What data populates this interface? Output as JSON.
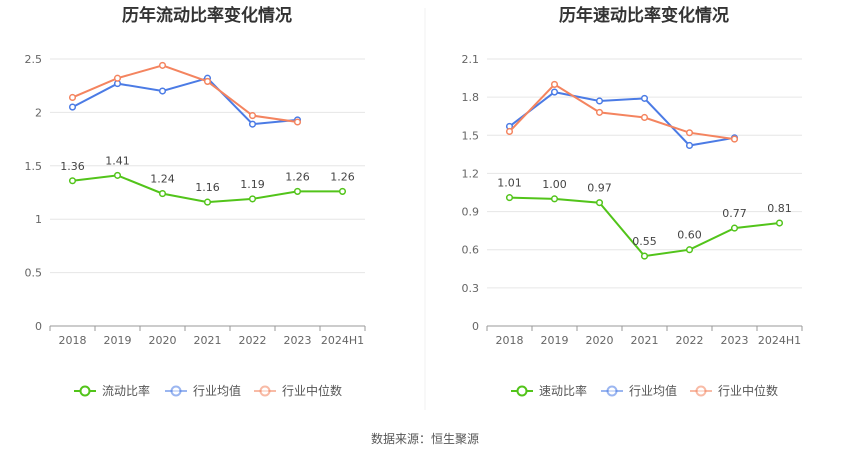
{
  "chart_data": [
    {
      "type": "line",
      "title": "历年流动比率变化情况",
      "categories": [
        "2018",
        "2019",
        "2020",
        "2021",
        "2022",
        "2023",
        "2024H1"
      ],
      "y_ticks": [
        "0",
        "0.5",
        "1",
        "1.5",
        "2",
        "2.5"
      ],
      "ylim": [
        0,
        2.5
      ],
      "legend_position": "bottom-center",
      "series": [
        {
          "name": "流动比率",
          "color": "#52c41a",
          "labels": [
            "1.36",
            "1.41",
            "1.24",
            "1.16",
            "1.19",
            "1.26",
            "1.26"
          ],
          "values": [
            1.36,
            1.41,
            1.24,
            1.16,
            1.19,
            1.26,
            1.26
          ]
        },
        {
          "name": "行业均值",
          "color": "#4b7be5",
          "values": [
            2.05,
            2.27,
            2.2,
            2.32,
            1.89,
            1.93,
            null
          ]
        },
        {
          "name": "行业中位数",
          "color": "#f4845f",
          "values": [
            2.14,
            2.32,
            2.44,
            2.29,
            1.97,
            1.91,
            null
          ]
        }
      ]
    },
    {
      "type": "line",
      "title": "历年速动比率变化情况",
      "categories": [
        "2018",
        "2019",
        "2020",
        "2021",
        "2022",
        "2023",
        "2024H1"
      ],
      "y_ticks": [
        "0",
        "0.3",
        "0.6",
        "0.9",
        "1.2",
        "1.5",
        "1.8",
        "2.1"
      ],
      "ylim": [
        0,
        2.1
      ],
      "legend_position": "bottom-center",
      "series": [
        {
          "name": "速动比率",
          "color": "#52c41a",
          "labels": [
            "1.01",
            "1.00",
            "0.97",
            "0.55",
            "0.60",
            "0.77",
            "0.81"
          ],
          "values": [
            1.01,
            1.0,
            0.97,
            0.55,
            0.6,
            0.77,
            0.81
          ]
        },
        {
          "name": "行业均值",
          "color": "#4b7be5",
          "values": [
            1.57,
            1.84,
            1.77,
            1.79,
            1.42,
            1.48,
            null
          ]
        },
        {
          "name": "行业中位数",
          "color": "#f4845f",
          "values": [
            1.53,
            1.9,
            1.68,
            1.64,
            1.52,
            1.47,
            null
          ]
        }
      ]
    }
  ],
  "footer": {
    "source": "数据来源：恒生聚源"
  }
}
